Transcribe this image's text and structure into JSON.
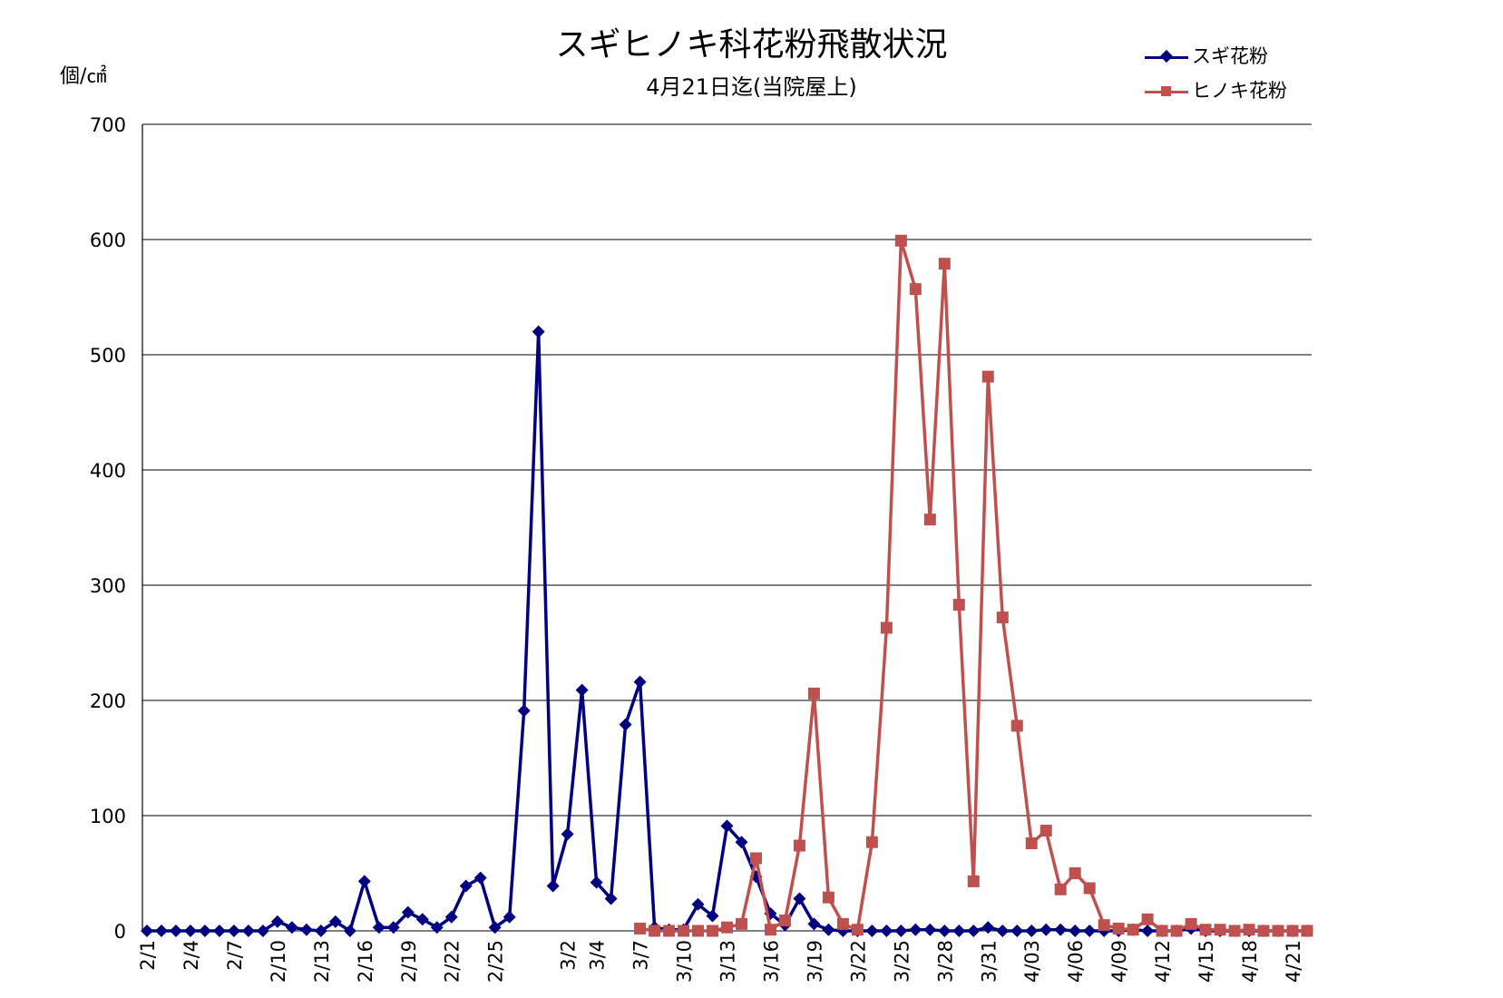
{
  "chart_data": {
    "type": "line",
    "title": "スギヒノキ科花粉飛散状況",
    "subtitle": "4月21日迄(当院屋上)",
    "ylabel": "個/㎠",
    "ylim": [
      0,
      700
    ],
    "yticks": [
      0,
      100,
      200,
      300,
      400,
      500,
      600,
      700
    ],
    "grid": true,
    "legend_position": "top-right",
    "x_start": "2/1",
    "x_end": "4/21",
    "x_tick_labels": [
      "2/1",
      "2/4",
      "2/7",
      "2/10",
      "2/13",
      "2/16",
      "2/19",
      "2/22",
      "2/25",
      "3/2",
      "3/4",
      "3/7",
      "3/10",
      "3/13",
      "3/16",
      "3/19",
      "3/22",
      "3/25",
      "3/28",
      "3/31",
      "4/03",
      "4/06",
      "4/09",
      "4/12",
      "4/15",
      "4/18",
      "4/21"
    ],
    "series": [
      {
        "name": "スギ花粉",
        "color": "#000080",
        "marker": "diamond",
        "values": [
          0,
          0,
          0,
          0,
          0,
          0,
          0,
          0,
          0,
          8,
          3,
          1,
          0,
          8,
          0,
          43,
          3,
          3,
          16,
          10,
          3,
          12,
          39,
          46,
          3,
          12,
          191,
          520,
          39,
          84,
          209,
          42,
          28,
          179,
          216,
          3,
          1,
          1,
          23,
          13,
          91,
          77,
          47,
          15,
          5,
          28,
          6,
          1,
          0,
          0,
          0,
          0,
          0,
          1,
          1,
          0,
          0,
          0,
          3,
          0,
          0,
          0,
          1,
          1,
          0,
          0,
          0,
          0,
          1,
          0,
          0,
          0,
          2,
          0,
          0,
          0,
          0,
          0,
          0,
          0,
          0
        ]
      },
      {
        "name": "ヒノキ花粉",
        "color": "#c0504d",
        "marker": "square",
        "values": [
          null,
          null,
          null,
          null,
          null,
          null,
          null,
          null,
          null,
          null,
          null,
          null,
          null,
          null,
          null,
          null,
          null,
          null,
          null,
          null,
          null,
          null,
          null,
          null,
          null,
          null,
          null,
          null,
          null,
          null,
          null,
          null,
          null,
          null,
          2,
          0,
          0,
          0,
          0,
          0,
          3,
          6,
          63,
          1,
          9,
          74,
          206,
          29,
          6,
          1,
          77,
          263,
          599,
          557,
          357,
          579,
          283,
          43,
          481,
          272,
          178,
          76,
          87,
          36,
          50,
          37,
          5,
          2,
          1,
          10,
          0,
          0,
          6,
          1,
          1,
          0,
          1,
          0,
          0,
          0,
          0
        ]
      }
    ]
  }
}
